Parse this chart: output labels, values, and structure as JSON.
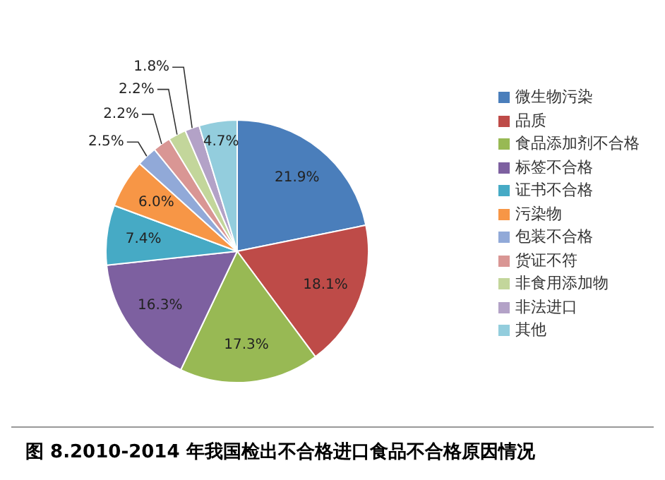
{
  "chart_data": {
    "type": "pie",
    "title": "图 8.2010-2014 年我国检出不合格进口食品不合格原因情况",
    "categories": [
      "微生物污染",
      "品质",
      "食品添加剂不合格",
      "标签不合格",
      "证书不合格",
      "污染物",
      "包装不合格",
      "货证不符",
      "非食用添加物",
      "非法进口",
      "其他"
    ],
    "values": [
      21.9,
      18.1,
      17.3,
      16.3,
      7.4,
      6.0,
      2.5,
      2.2,
      2.2,
      1.8,
      4.7
    ],
    "value_labels": [
      "21.9%",
      "18.1%",
      "17.3%",
      "16.3%",
      "7.4%",
      "6.0%",
      "2.5%",
      "2.2%",
      "2.2%",
      "1.8%",
      "4.7%"
    ],
    "colors": [
      "#4a7ebb",
      "#be4b48",
      "#98b954",
      "#7d60a0",
      "#46aac5",
      "#f79646",
      "#91a9d8",
      "#d99694",
      "#c3d69b",
      "#b3a2c7",
      "#93cddd"
    ],
    "legend": "right"
  }
}
